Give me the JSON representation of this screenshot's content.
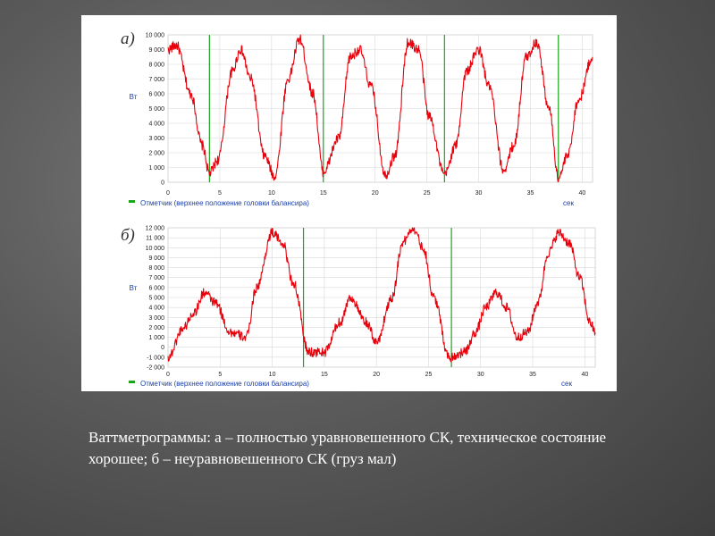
{
  "caption": "Ваттметрограммы: а – полностью уравновешенного СК, техническое состояние хорошее; б – неуравновешенного СК (груз мал)",
  "colors": {
    "signal": "#e8000b",
    "marker": "#1aa51a",
    "grid": "#d8d8d8",
    "axis_label": "#1a3fa8"
  },
  "chart_data": [
    {
      "type": "line",
      "panel_label": "а)",
      "ylabel": "Вт",
      "xlabel": "сек",
      "legend": "Отметчик (верхнее положение головки балансира)",
      "xlim": [
        0,
        41
      ],
      "ylim": [
        0,
        10000
      ],
      "xticks": [
        0,
        5,
        10,
        15,
        20,
        25,
        30,
        35,
        40
      ],
      "yticks": [
        0,
        1000,
        2000,
        3000,
        4000,
        5000,
        6000,
        7000,
        8000,
        9000,
        10000
      ],
      "ytick_labels": [
        "0",
        "1 000",
        "2 000",
        "3 000",
        "4 000",
        "5 000",
        "6 000",
        "7 000",
        "8 000",
        "9 000",
        "10 000"
      ],
      "grid": true,
      "markers_x": [
        4.0,
        15.0,
        26.7,
        37.7
      ],
      "series": [
        {
          "x": [
            0,
            0.8,
            2.2,
            3.3,
            4.0,
            4.8,
            6.2,
            7.0,
            8.0,
            9.3,
            10.3,
            11.6,
            12.7,
            14.0,
            15.0,
            16.5,
            17.6,
            18.5,
            19.6,
            21.0,
            21.9,
            23.2,
            24.2,
            25.2,
            26.7,
            27.8,
            28.8,
            30.0,
            31.0,
            32.4,
            33.4,
            34.6,
            35.6,
            36.8,
            37.7,
            38.6,
            39.6,
            41.0
          ],
          "y": [
            9000,
            9300,
            6000,
            2500,
            600,
            1500,
            7500,
            9000,
            7000,
            1800,
            400,
            7000,
            9700,
            6000,
            700,
            3000,
            8500,
            9000,
            6500,
            500,
            1800,
            9500,
            9000,
            4500,
            500,
            2500,
            7500,
            9000,
            6500,
            800,
            2500,
            8500,
            9500,
            5000,
            300,
            1800,
            5500,
            8500
          ]
        }
      ]
    },
    {
      "type": "line",
      "panel_label": "б)",
      "ylabel": "Вт",
      "xlabel": "сек",
      "legend": "Отметчик (верхнее положение головки балансира)",
      "xlim": [
        0,
        41
      ],
      "ylim": [
        -2000,
        12000
      ],
      "xticks": [
        0,
        5,
        10,
        15,
        20,
        25,
        30,
        35,
        40
      ],
      "yticks": [
        -2000,
        -1000,
        0,
        1000,
        2000,
        3000,
        4000,
        5000,
        6000,
        7000,
        8000,
        9000,
        10000,
        11000,
        12000
      ],
      "ytick_labels": [
        "-2 000",
        "-1 000",
        "0",
        "1 000",
        "2 000",
        "3 000",
        "4 000",
        "5 000",
        "6 000",
        "7 000",
        "8 000",
        "9 000",
        "10 000",
        "11 000",
        "12 000"
      ],
      "grid": true,
      "markers_x": [
        13.0,
        27.2
      ],
      "series": [
        {
          "x": [
            0,
            1.5,
            2.5,
            3.5,
            4.5,
            6.0,
            7.5,
            8.5,
            10.0,
            11.0,
            12.0,
            13.5,
            15.0,
            16.5,
            17.5,
            19.0,
            20.0,
            21.5,
            22.5,
            23.5,
            24.5,
            25.5,
            27.0,
            28.5,
            29.5,
            30.5,
            31.5,
            32.5,
            33.5,
            34.5,
            35.5,
            36.5,
            37.5,
            38.5,
            39.5,
            40.5,
            41.0
          ],
          "y": [
            -1000,
            2000,
            3500,
            5500,
            4500,
            1500,
            1000,
            6000,
            11500,
            10500,
            6500,
            -500,
            -500,
            2500,
            5000,
            2500,
            500,
            5000,
            10500,
            12000,
            10000,
            5000,
            -1000,
            -500,
            1500,
            4000,
            5500,
            4000,
            1000,
            1500,
            4500,
            9500,
            11500,
            10500,
            7000,
            2500,
            1500
          ]
        }
      ]
    }
  ]
}
